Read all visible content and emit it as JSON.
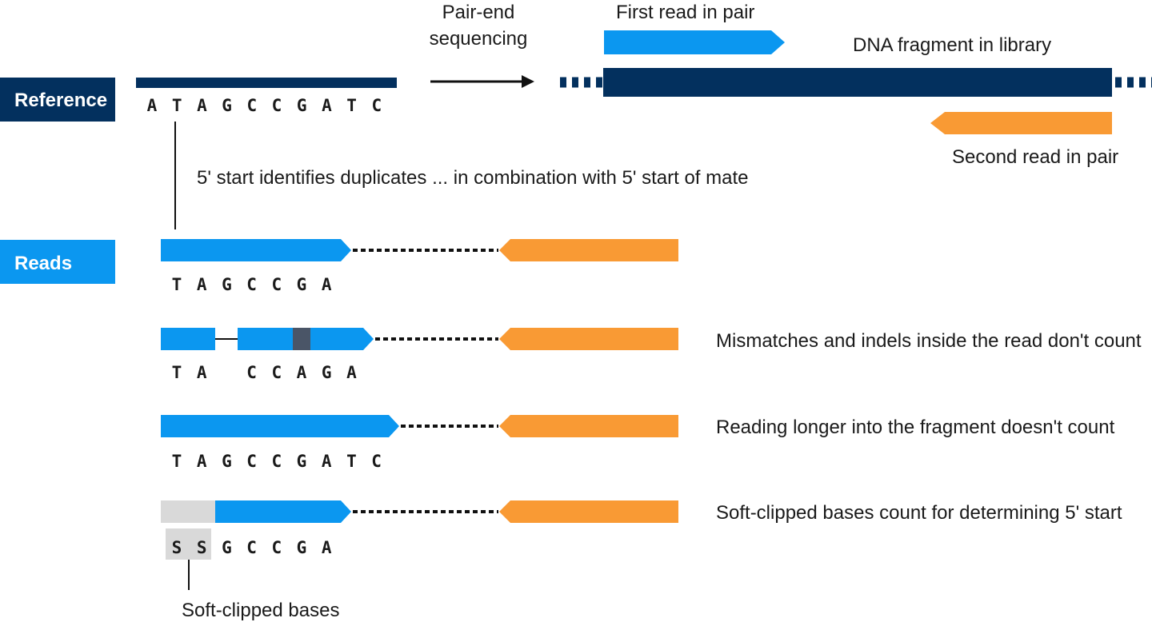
{
  "labels": {
    "reference": "Reference",
    "reads": "Reads",
    "pair_end": "Pair-end",
    "sequencing": "sequencing",
    "first_read": "First read in pair",
    "dna_fragment": "DNA fragment in library",
    "second_read": "Second read in pair",
    "five_prime": "5' start identifies duplicates ... in combination with 5' start of mate",
    "soft_clipped_bases": "Soft-clipped bases"
  },
  "reference_sequence": [
    "A",
    "T",
    "A",
    "G",
    "C",
    "C",
    "G",
    "A",
    "T",
    "C"
  ],
  "reads": [
    {
      "sequence": [
        "T",
        "A",
        "G",
        "C",
        "C",
        "G",
        "A"
      ],
      "note": ""
    },
    {
      "sequence": [
        "T",
        "A",
        "",
        "C",
        "C",
        "A",
        "G",
        "A"
      ],
      "note": "Mismatches and indels inside the read don't count"
    },
    {
      "sequence": [
        "T",
        "A",
        "G",
        "C",
        "C",
        "G",
        "A",
        "T",
        "C"
      ],
      "note": "Reading longer into the fragment doesn't count"
    },
    {
      "sequence": [
        "S",
        "S",
        "G",
        "C",
        "C",
        "G",
        "A"
      ],
      "note": "Soft-clipped bases count for determining 5' start"
    }
  ],
  "colors": {
    "navy": "#03305e",
    "blue": "#0b97f0",
    "orange": "#f99a34",
    "mismatch": "#4a5567",
    "softclip": "#d9d9d9",
    "dots": "#111111"
  }
}
